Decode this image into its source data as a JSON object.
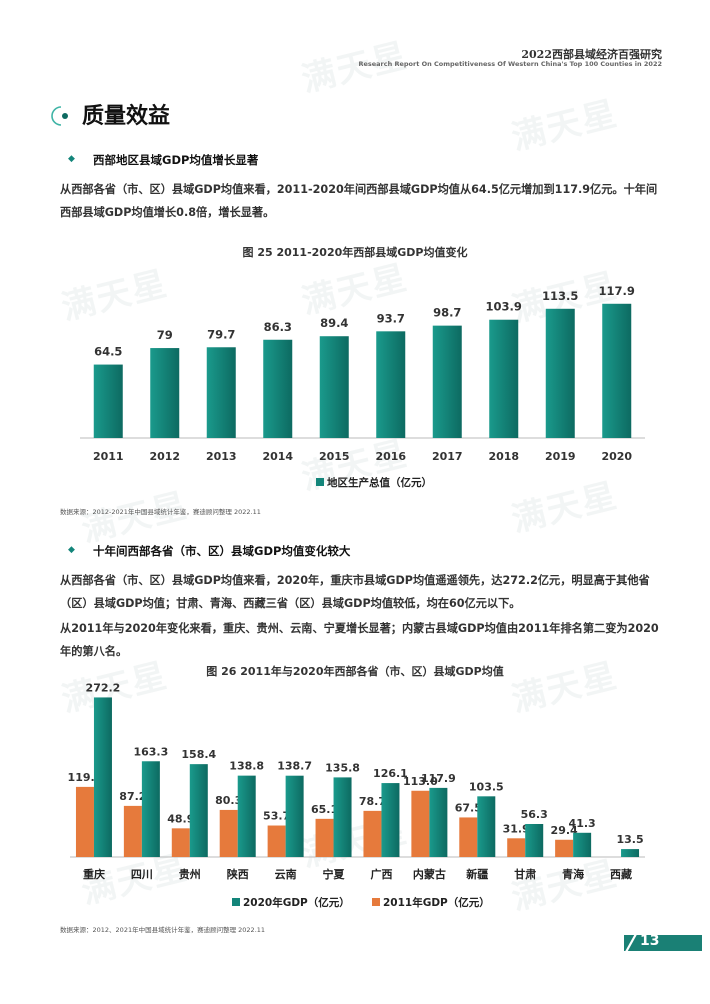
{
  "header": {
    "title": "2022西部县域经济百强研究",
    "subtitle": "Research Report On Competitiveness Of Western China's Top 100 Counties in 2022"
  },
  "watermark_text": "满天星",
  "section": {
    "title": "质量效益"
  },
  "s1": {
    "heading": "西部地区县域GDP均值增长显著",
    "para": "从西部各省（市、区）县域GDP均值来看，2011-2020年间西部县域GDP均值从64.5亿元增加到117.9亿元。十年间西部县域GDP均值增长0.8倍，增长显著。"
  },
  "s2": {
    "heading": "十年间西部各省（市、区）县域GDP均值变化较大",
    "para1": "从西部各省（市、区）县域GDP均值来看，2020年，重庆市县域GDP均值遥遥领先，达272.2亿元，明显高于其他省（区）县域GDP均值；甘肃、青海、西藏三省（区）县域GDP均值较低，均在60亿元以下。",
    "para2": "从2011年与2020年变化来看，重庆、贵州、云南、宁夏增长显著；内蒙古县域GDP均值由2011年排名第二变为2020年的第八名。"
  },
  "sources": {
    "chart1": "数据来源：2012-2021年中国县域统计年鉴，赛迪顾问整理 2022.11",
    "chart2": "数据来源：2012、2021年中国县域统计年鉴，赛迪顾问整理 2022.11"
  },
  "page_number": "13",
  "colors": {
    "teal": "#13857a",
    "orange": "#e67a3c",
    "teal_dark": "#0d6a61"
  },
  "chart_data": [
    {
      "type": "bar",
      "title": "图 25  2011-2020年西部县域GDP均值变化",
      "categories": [
        "2011",
        "2012",
        "2013",
        "2014",
        "2015",
        "2016",
        "2017",
        "2018",
        "2019",
        "2020"
      ],
      "series": [
        {
          "name": "地区生产总值（亿元）",
          "values": [
            64.5,
            79,
            79.7,
            86.3,
            89.4,
            93.7,
            98.7,
            103.9,
            113.5,
            117.9
          ]
        }
      ],
      "data_labels": [
        "64.5",
        "79",
        "79.7",
        "86.3",
        "89.4",
        "93.7",
        "98.7",
        "103.9",
        "113.5",
        "117.9"
      ],
      "legend_position": "bottom",
      "ylim": [
        0,
        130
      ],
      "grid": false
    },
    {
      "type": "bar",
      "title": "图 26  2011年与2020年西部各省（市、区）县域GDP均值",
      "categories": [
        "重庆",
        "四川",
        "贵州",
        "陕西",
        "云南",
        "宁夏",
        "广西",
        "内蒙古",
        "新疆",
        "甘肃",
        "青海",
        "西藏"
      ],
      "series": [
        {
          "name": "2011年GDP（亿元）",
          "values": [
            119.6,
            87.2,
            48.9,
            80.3,
            53.7,
            65.1,
            78.7,
            113.0,
            67.5,
            31.9,
            29.4,
            null
          ]
        },
        {
          "name": "2020年GDP（亿元）",
          "values": [
            272.2,
            163.3,
            158.4,
            138.8,
            138.7,
            135.8,
            126.1,
            117.9,
            103.5,
            56.3,
            41.3,
            13.5
          ]
        }
      ],
      "data_labels_2011": [
        "119.6",
        "87.2",
        "48.9",
        "80.3",
        "53.7",
        "65.1",
        "78.7",
        "113.0",
        "67.5",
        "31.9",
        "29.4",
        ""
      ],
      "data_labels_2020": [
        "272.2",
        "163.3",
        "158.4",
        "138.8",
        "138.7",
        "135.8",
        "126.1",
        "117.9",
        "103.5",
        "56.3",
        "41.3",
        "13.5"
      ],
      "legend_order": [
        "2020年GDP（亿元）",
        "2011年GDP（亿元）"
      ],
      "legend_position": "bottom",
      "ylim": [
        0,
        290
      ],
      "grid": false
    }
  ]
}
